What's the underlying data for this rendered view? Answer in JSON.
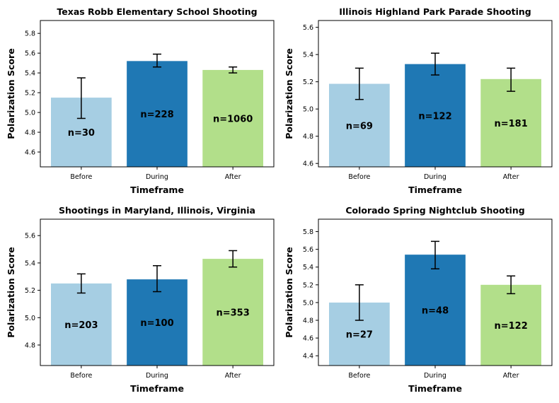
{
  "chart_data": [
    {
      "type": "bar",
      "title": "Texas Robb Elementary School Shooting",
      "xlabel": "Timeframe",
      "ylabel": "Polarization Score",
      "categories": [
        "Before",
        "During",
        "After"
      ],
      "values": [
        5.15,
        5.52,
        5.43
      ],
      "error_low": [
        4.94,
        5.46,
        5.4
      ],
      "error_high": [
        5.35,
        5.59,
        5.46
      ],
      "labels": [
        "n=30",
        "n=228",
        "n=1060"
      ],
      "ylim": [
        4.45,
        5.93
      ],
      "yticks": [
        4.6,
        4.8,
        5.0,
        5.2,
        5.4,
        5.6,
        5.8
      ],
      "grid": false
    },
    {
      "type": "bar",
      "title": "Illinois Highland Park Parade Shooting",
      "xlabel": "Timeframe",
      "ylabel": "Polarization Score",
      "categories": [
        "Before",
        "During",
        "After"
      ],
      "values": [
        5.185,
        5.33,
        5.22
      ],
      "error_low": [
        5.07,
        5.25,
        5.13
      ],
      "error_high": [
        5.3,
        5.41,
        5.3
      ],
      "labels": [
        "n=69",
        "n=122",
        "n=181"
      ],
      "ylim": [
        4.575,
        5.65
      ],
      "yticks": [
        4.6,
        4.8,
        5.0,
        5.2,
        5.4,
        5.6
      ],
      "grid": false
    },
    {
      "type": "bar",
      "title": "Shootings in Maryland, Illinois, Virginia",
      "xlabel": "Timeframe",
      "ylabel": "Polarization Score",
      "categories": [
        "Before",
        "During",
        "After"
      ],
      "values": [
        5.25,
        5.28,
        5.43
      ],
      "error_low": [
        5.18,
        5.19,
        5.37
      ],
      "error_high": [
        5.32,
        5.38,
        5.49
      ],
      "labels": [
        "n=203",
        "n=100",
        "n=353"
      ],
      "ylim": [
        4.65,
        5.72
      ],
      "yticks": [
        4.8,
        5.0,
        5.2,
        5.4,
        5.6
      ],
      "grid": false
    },
    {
      "type": "bar",
      "title": "Colorado Spring Nightclub Shooting",
      "xlabel": "Timeframe",
      "ylabel": "Polarization Score",
      "categories": [
        "Before",
        "During",
        "After"
      ],
      "values": [
        5.0,
        5.54,
        5.2
      ],
      "error_low": [
        4.8,
        5.38,
        5.1
      ],
      "error_high": [
        5.2,
        5.69,
        5.3
      ],
      "labels": [
        "n=27",
        "n=48",
        "n=122"
      ],
      "ylim": [
        4.29,
        5.94
      ],
      "yticks": [
        4.4,
        4.6,
        4.8,
        5.0,
        5.2,
        5.4,
        5.6,
        5.8
      ],
      "grid": false
    }
  ],
  "colors": [
    "#a6cee3",
    "#1f78b4",
    "#b2df8a"
  ]
}
